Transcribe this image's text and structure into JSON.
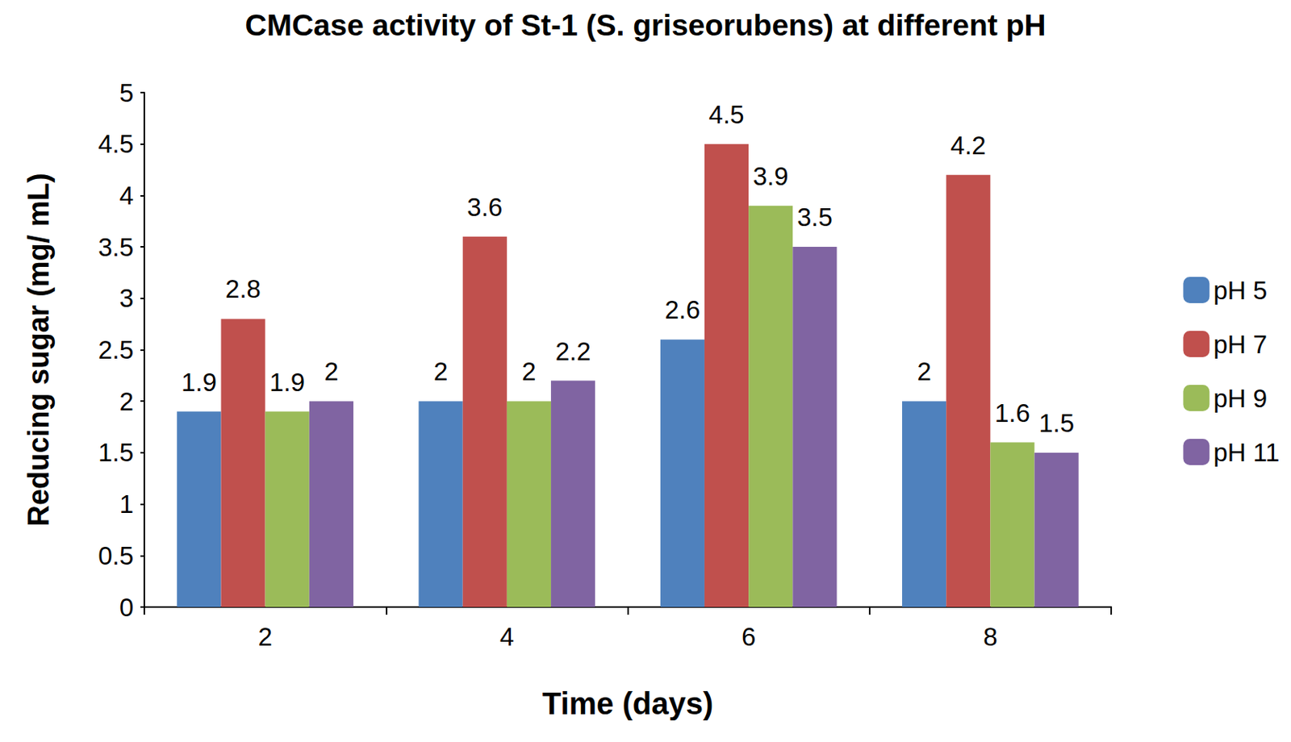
{
  "chart_data": {
    "type": "bar",
    "title": "CMCase activity of St-1 (S. griseorubens) at different pH",
    "x_label": "Time (days)",
    "y_label": "Reducing sugar (mg/ mL)",
    "categories": [
      "2",
      "4",
      "6",
      "8"
    ],
    "series": [
      {
        "name": "pH 5",
        "color": "#4f81bd",
        "values": [
          1.9,
          2,
          2.6,
          2
        ]
      },
      {
        "name": "pH 7",
        "color": "#c0504d",
        "values": [
          2.8,
          3.6,
          4.5,
          4.2
        ]
      },
      {
        "name": "pH 9",
        "color": "#9bbb59",
        "values": [
          1.9,
          2,
          3.9,
          1.6
        ]
      },
      {
        "name": "pH 11",
        "color": "#8064a2",
        "values": [
          2,
          2.2,
          3.5,
          1.5
        ]
      }
    ],
    "ylim": [
      0,
      5
    ],
    "yticks": [
      0,
      0.5,
      1,
      1.5,
      2,
      2.5,
      3,
      3.5,
      4,
      4.5,
      5
    ],
    "grid": false,
    "legend": "right",
    "data_labels": true
  }
}
